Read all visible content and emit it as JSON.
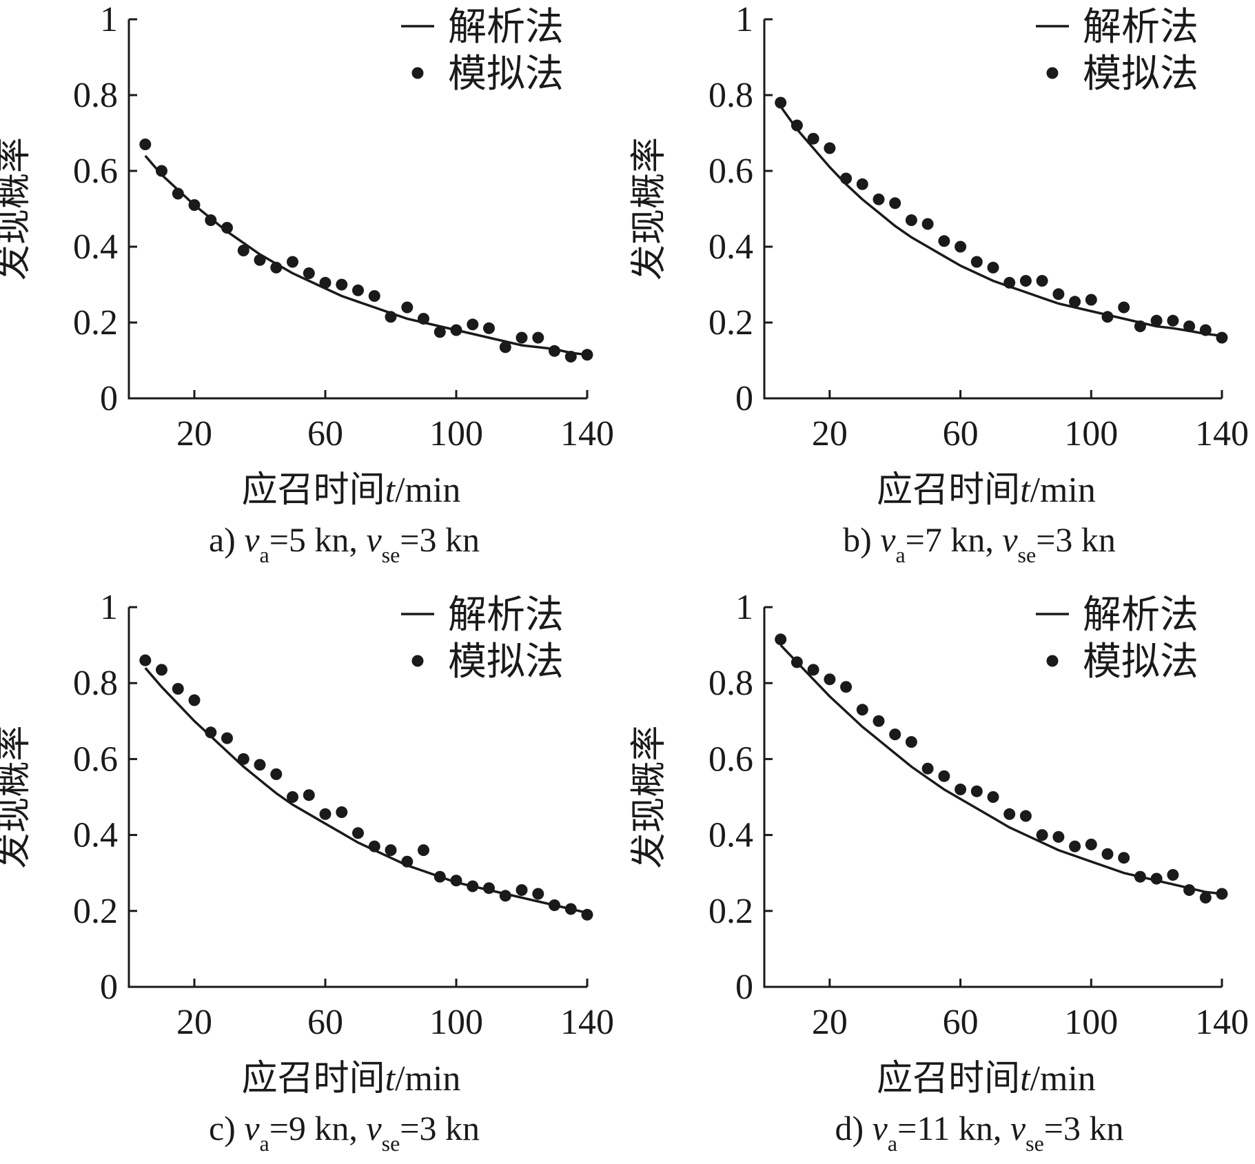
{
  "chart_data": [
    {
      "type": "line",
      "caption": {
        "prefix": "a) ",
        "var1": "v",
        "sub1": "a",
        "mid": "=5 kn, ",
        "var2": "v",
        "sub2": "se",
        "suffix": "=3 kn"
      },
      "xlabel": {
        "main": "应召时间",
        "var": "t",
        "unit": "/min"
      },
      "ylabel": "发现概率",
      "xlim": [
        0,
        140
      ],
      "ylim": [
        0,
        1
      ],
      "xticks": [
        20,
        60,
        100,
        140
      ],
      "yticks": [
        0,
        0.2,
        0.4,
        0.6,
        0.8,
        1
      ],
      "ytick_labels": [
        "0",
        "0.2",
        "0.4",
        "0.6",
        "0.8",
        "1"
      ],
      "legend_position": "top-right",
      "series": [
        {
          "name": "解析法",
          "kind": "line",
          "x": [
            5,
            10,
            15,
            20,
            25,
            30,
            35,
            40,
            45,
            50,
            55,
            60,
            65,
            70,
            75,
            80,
            85,
            90,
            95,
            100,
            105,
            110,
            115,
            120,
            125,
            130,
            135,
            140
          ],
          "y": [
            0.64,
            0.59,
            0.55,
            0.51,
            0.475,
            0.44,
            0.41,
            0.38,
            0.355,
            0.33,
            0.31,
            0.29,
            0.27,
            0.255,
            0.24,
            0.225,
            0.21,
            0.2,
            0.19,
            0.18,
            0.17,
            0.16,
            0.15,
            0.14,
            0.135,
            0.13,
            0.12,
            0.115
          ]
        },
        {
          "name": "模拟法",
          "kind": "scatter",
          "x": [
            5,
            10,
            15,
            20,
            25,
            30,
            35,
            40,
            45,
            50,
            55,
            60,
            65,
            70,
            75,
            80,
            85,
            90,
            95,
            100,
            105,
            110,
            115,
            120,
            125,
            130,
            135,
            140
          ],
          "y": [
            0.67,
            0.6,
            0.54,
            0.51,
            0.47,
            0.45,
            0.39,
            0.365,
            0.345,
            0.36,
            0.33,
            0.305,
            0.3,
            0.285,
            0.27,
            0.215,
            0.24,
            0.21,
            0.175,
            0.18,
            0.195,
            0.185,
            0.135,
            0.16,
            0.16,
            0.125,
            0.11,
            0.115
          ]
        }
      ]
    },
    {
      "type": "line",
      "caption": {
        "prefix": "b) ",
        "var1": "v",
        "sub1": "a",
        "mid": "=7 kn, ",
        "var2": "v",
        "sub2": "se",
        "suffix": "=3 kn"
      },
      "xlabel": {
        "main": "应召时间",
        "var": "t",
        "unit": "/min"
      },
      "ylabel": "发现概率",
      "xlim": [
        0,
        140
      ],
      "ylim": [
        0,
        1
      ],
      "xticks": [
        20,
        60,
        100,
        140
      ],
      "yticks": [
        0,
        0.2,
        0.4,
        0.6,
        0.8,
        1
      ],
      "ytick_labels": [
        "0",
        "0.2",
        "0.4",
        "0.6",
        "0.8",
        "1"
      ],
      "legend_position": "top-right",
      "series": [
        {
          "name": "解析法",
          "kind": "line",
          "x": [
            5,
            10,
            15,
            20,
            25,
            30,
            35,
            40,
            45,
            50,
            55,
            60,
            65,
            70,
            75,
            80,
            85,
            90,
            95,
            100,
            105,
            110,
            115,
            120,
            125,
            130,
            135,
            140
          ],
          "y": [
            0.77,
            0.71,
            0.66,
            0.61,
            0.565,
            0.525,
            0.49,
            0.455,
            0.425,
            0.4,
            0.375,
            0.35,
            0.33,
            0.31,
            0.295,
            0.28,
            0.265,
            0.25,
            0.24,
            0.23,
            0.22,
            0.21,
            0.2,
            0.19,
            0.185,
            0.178,
            0.17,
            0.165
          ]
        },
        {
          "name": "模拟法",
          "kind": "scatter",
          "x": [
            5,
            10,
            15,
            20,
            25,
            30,
            35,
            40,
            45,
            50,
            55,
            60,
            65,
            70,
            75,
            80,
            85,
            90,
            95,
            100,
            105,
            110,
            115,
            120,
            125,
            130,
            135,
            140
          ],
          "y": [
            0.78,
            0.72,
            0.685,
            0.66,
            0.58,
            0.565,
            0.525,
            0.515,
            0.47,
            0.46,
            0.415,
            0.4,
            0.36,
            0.345,
            0.305,
            0.31,
            0.31,
            0.275,
            0.255,
            0.26,
            0.215,
            0.24,
            0.19,
            0.205,
            0.205,
            0.19,
            0.18,
            0.16
          ]
        }
      ]
    },
    {
      "type": "line",
      "caption": {
        "prefix": "c) ",
        "var1": "v",
        "sub1": "a",
        "mid": "=9 kn, ",
        "var2": "v",
        "sub2": "se",
        "suffix": "=3 kn"
      },
      "xlabel": {
        "main": "应召时间",
        "var": "t",
        "unit": "/min"
      },
      "ylabel": "发现概率",
      "xlim": [
        0,
        140
      ],
      "ylim": [
        0,
        1
      ],
      "xticks": [
        20,
        60,
        100,
        140
      ],
      "yticks": [
        0,
        0.2,
        0.4,
        0.6,
        0.8,
        1
      ],
      "ytick_labels": [
        "0",
        "0.2",
        "0.4",
        "0.6",
        "0.8",
        "1"
      ],
      "legend_position": "top-right",
      "series": [
        {
          "name": "解析法",
          "kind": "line",
          "x": [
            5,
            10,
            15,
            20,
            25,
            30,
            35,
            40,
            45,
            50,
            55,
            60,
            65,
            70,
            75,
            80,
            85,
            90,
            95,
            100,
            105,
            110,
            115,
            120,
            125,
            130,
            135,
            140
          ],
          "y": [
            0.84,
            0.79,
            0.745,
            0.7,
            0.66,
            0.62,
            0.58,
            0.545,
            0.51,
            0.48,
            0.455,
            0.43,
            0.405,
            0.38,
            0.36,
            0.34,
            0.32,
            0.305,
            0.29,
            0.275,
            0.265,
            0.255,
            0.245,
            0.235,
            0.225,
            0.215,
            0.205,
            0.195
          ]
        },
        {
          "name": "模拟法",
          "kind": "scatter",
          "x": [
            5,
            10,
            15,
            20,
            25,
            30,
            35,
            40,
            45,
            50,
            55,
            60,
            65,
            70,
            75,
            80,
            85,
            90,
            95,
            100,
            105,
            110,
            115,
            120,
            125,
            130,
            135,
            140
          ],
          "y": [
            0.86,
            0.835,
            0.785,
            0.755,
            0.67,
            0.655,
            0.6,
            0.585,
            0.56,
            0.5,
            0.505,
            0.455,
            0.46,
            0.405,
            0.37,
            0.36,
            0.33,
            0.36,
            0.29,
            0.28,
            0.265,
            0.26,
            0.24,
            0.255,
            0.245,
            0.215,
            0.205,
            0.19
          ]
        }
      ]
    },
    {
      "type": "line",
      "caption": {
        "prefix": "d) ",
        "var1": "v",
        "sub1": "a",
        "mid": "=11 kn, ",
        "var2": "v",
        "sub2": "se",
        "suffix": "=3 kn"
      },
      "xlabel": {
        "main": "应召时间",
        "var": "t",
        "unit": "/min"
      },
      "ylabel": "发现概率",
      "xlim": [
        0,
        140
      ],
      "ylim": [
        0,
        1
      ],
      "xticks": [
        20,
        60,
        100,
        140
      ],
      "yticks": [
        0,
        0.2,
        0.4,
        0.6,
        0.8,
        1
      ],
      "ytick_labels": [
        "0",
        "0.2",
        "0.4",
        "0.6",
        "0.8",
        "1"
      ],
      "legend_position": "top-right",
      "series": [
        {
          "name": "解析法",
          "kind": "line",
          "x": [
            5,
            10,
            15,
            20,
            25,
            30,
            35,
            40,
            45,
            50,
            55,
            60,
            65,
            70,
            75,
            80,
            85,
            90,
            95,
            100,
            105,
            110,
            115,
            120,
            125,
            130,
            135,
            140
          ],
          "y": [
            0.9,
            0.855,
            0.81,
            0.765,
            0.725,
            0.685,
            0.65,
            0.615,
            0.58,
            0.55,
            0.52,
            0.495,
            0.47,
            0.445,
            0.42,
            0.4,
            0.38,
            0.36,
            0.345,
            0.33,
            0.315,
            0.3,
            0.29,
            0.28,
            0.27,
            0.26,
            0.25,
            0.245
          ]
        },
        {
          "name": "模拟法",
          "kind": "scatter",
          "x": [
            5,
            10,
            15,
            20,
            25,
            30,
            35,
            40,
            45,
            50,
            55,
            60,
            65,
            70,
            75,
            80,
            85,
            90,
            95,
            100,
            105,
            110,
            115,
            120,
            125,
            130,
            135,
            140
          ],
          "y": [
            0.915,
            0.855,
            0.835,
            0.81,
            0.79,
            0.73,
            0.7,
            0.665,
            0.645,
            0.575,
            0.555,
            0.52,
            0.515,
            0.5,
            0.455,
            0.45,
            0.4,
            0.395,
            0.37,
            0.375,
            0.35,
            0.34,
            0.29,
            0.285,
            0.295,
            0.255,
            0.235,
            0.245
          ]
        }
      ]
    }
  ]
}
